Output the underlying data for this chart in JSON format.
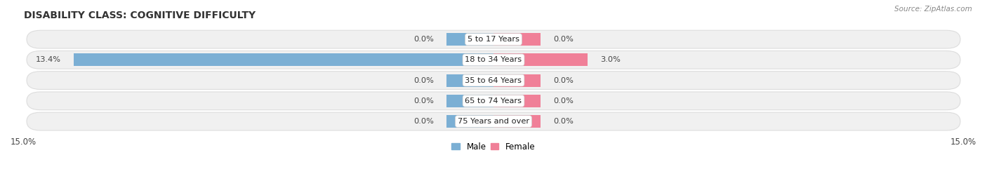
{
  "title": "DISABILITY CLASS: COGNITIVE DIFFICULTY",
  "source": "Source: ZipAtlas.com",
  "categories": [
    "5 to 17 Years",
    "18 to 34 Years",
    "35 to 64 Years",
    "65 to 74 Years",
    "75 Years and over"
  ],
  "male_values": [
    0.0,
    13.4,
    0.0,
    0.0,
    0.0
  ],
  "female_values": [
    0.0,
    3.0,
    0.0,
    0.0,
    0.0
  ],
  "x_max": 15.0,
  "x_min": -15.0,
  "male_color": "#7bafd4",
  "female_color": "#f08098",
  "row_bg_color": "#f0f0f0",
  "row_border_color": "#dddddd",
  "label_color": "#555555",
  "title_fontsize": 10,
  "bar_height": 0.62,
  "zero_bar_size": 1.5,
  "legend_male": "Male",
  "legend_female": "Female"
}
